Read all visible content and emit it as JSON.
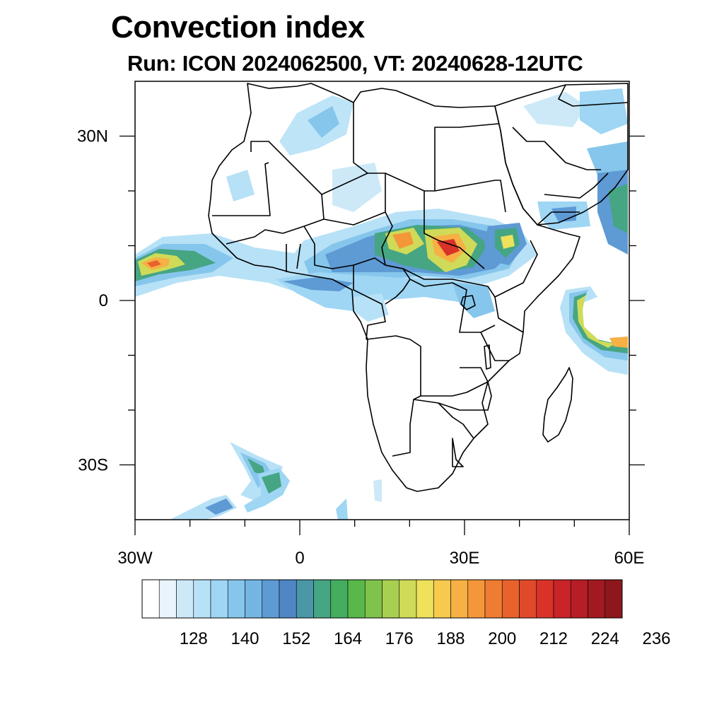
{
  "title": "Convection index",
  "subtitle": "Run: ICON 2024062500,  VT: 20240628-12UTC",
  "map": {
    "lon_range": [
      -30,
      60
    ],
    "lat_range": [
      -40,
      40
    ],
    "lon_tick_labels": [
      {
        "lon": -30,
        "label": "30W"
      },
      {
        "lon": 0,
        "label": "0"
      },
      {
        "lon": 30,
        "label": "30E"
      },
      {
        "lon": 60,
        "label": "60E"
      }
    ],
    "lat_tick_labels": [
      {
        "lat": 30,
        "label": "30N"
      },
      {
        "lat": 0,
        "label": "0"
      },
      {
        "lat": -30,
        "label": "30S"
      }
    ],
    "minor_lon_ticks": [
      -20,
      -10,
      10,
      20,
      40,
      50
    ],
    "minor_lat_ticks": [
      20,
      10,
      -10,
      -20
    ]
  },
  "colorbar": {
    "colors": [
      "#ffffff",
      "#e9f4fc",
      "#cde9f8",
      "#b7e1f6",
      "#9ed6f4",
      "#86c6ec",
      "#75b5e4",
      "#5e9ad4",
      "#4f86c6",
      "#4a97a8",
      "#46a583",
      "#44ad5f",
      "#58b84a",
      "#7fc24c",
      "#a8cf50",
      "#cfdb58",
      "#eee15b",
      "#f7c94f",
      "#f6b044",
      "#f4973a",
      "#ee7c32",
      "#e8622c",
      "#e04a2a",
      "#d93329",
      "#c92428",
      "#b61d25",
      "#a11a21",
      "#8e171d"
    ],
    "tick_labels": [
      "128",
      "140",
      "152",
      "164",
      "176",
      "188",
      "200",
      "212",
      "224",
      "236"
    ]
  }
}
